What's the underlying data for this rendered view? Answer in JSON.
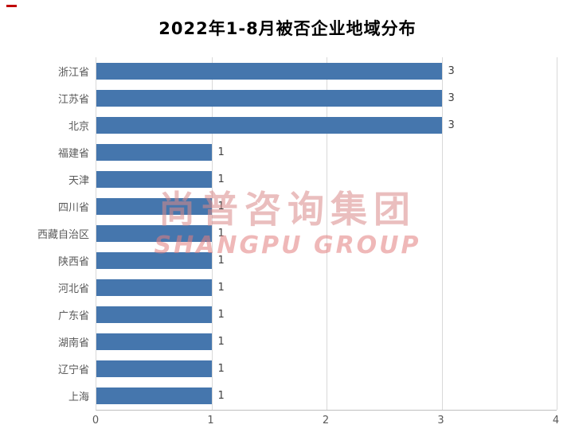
{
  "chart_data": {
    "type": "bar",
    "orientation": "horizontal",
    "title": "2022年1-8月被否企业地域分布",
    "categories": [
      "浙江省",
      "江苏省",
      "北京",
      "福建省",
      "天津",
      "四川省",
      "西藏自治区",
      "陕西省",
      "河北省",
      "广东省",
      "湖南省",
      "辽宁省",
      "上海"
    ],
    "values": [
      3,
      3,
      3,
      1,
      1,
      1,
      1,
      1,
      1,
      1,
      1,
      1,
      1
    ],
    "xlabel": "",
    "ylabel": "",
    "xlim": [
      0,
      4
    ],
    "x_ticks": [
      0,
      1,
      2,
      3,
      4
    ],
    "grid": true,
    "legend": "none",
    "bar_color": "#4576ad",
    "gridline_color": "#d9d9d9",
    "axis_line_color": "#bfbfbf",
    "label_color": "#595959",
    "data_label_color": "#404040"
  },
  "watermark": {
    "line1": "尚普咨询集团",
    "line2": "SHANGPU GROUP",
    "color_cn": "#d98a8a",
    "color_en": "#e37f7f"
  }
}
